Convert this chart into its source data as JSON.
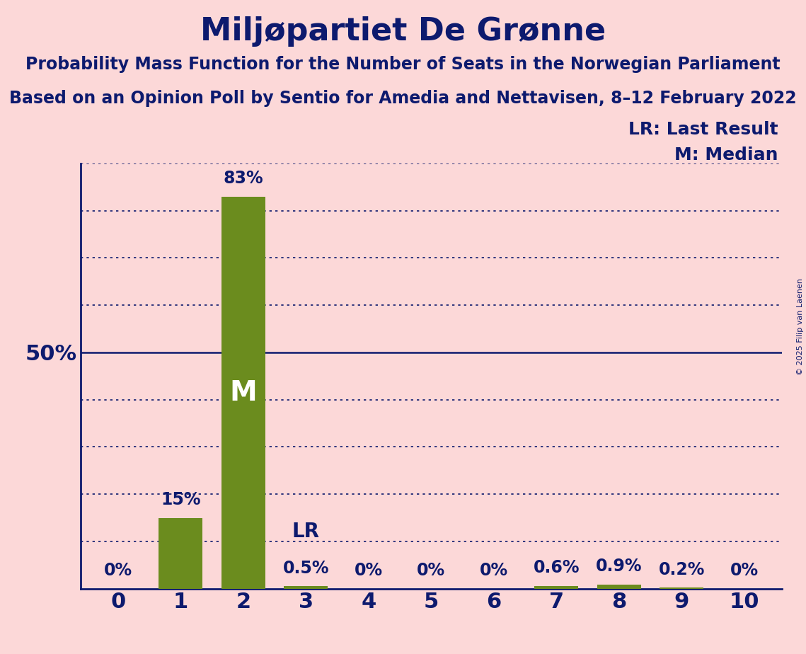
{
  "title": "Miljøpartiet De Grønne",
  "subtitle1": "Probability Mass Function for the Number of Seats in the Norwegian Parliament",
  "subtitle2": "Based on an Opinion Poll by Sentio for Amedia and Nettavisen, 8–12 February 2022",
  "copyright": "© 2025 Filip van Laenen",
  "categories": [
    0,
    1,
    2,
    3,
    4,
    5,
    6,
    7,
    8,
    9,
    10
  ],
  "values": [
    0.0,
    15.0,
    83.0,
    0.5,
    0.0,
    0.0,
    0.0,
    0.6,
    0.9,
    0.2,
    0.0
  ],
  "bar_color": "#6b8c1e",
  "background_color": "#fcd8d8",
  "text_color": "#0d1a6e",
  "value_labels": [
    "0%",
    "15%",
    "83%",
    "0.5%",
    "0%",
    "0%",
    "0%",
    "0.6%",
    "0.9%",
    "0.2%",
    "0%"
  ],
  "median_bar": 2,
  "lr_bar": 3,
  "ylim": [
    0,
    90
  ],
  "solid_ticks": [
    50
  ],
  "dotted_ticks": [
    10,
    20,
    30,
    40,
    60,
    70,
    80,
    90
  ],
  "lr_label": "LR: Last Result",
  "m_label": "M: Median",
  "m_inside_label": "M",
  "lr_inside_label": "LR"
}
